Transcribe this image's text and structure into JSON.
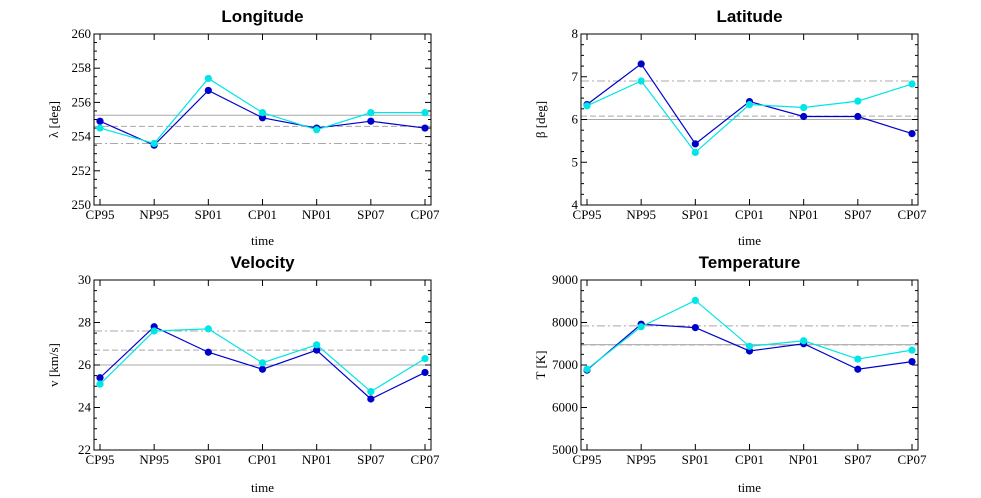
{
  "chart_data": [
    {
      "type": "line",
      "title": "Longitude",
      "xlabel": "time",
      "ylabel": "λ [deg]",
      "categories": [
        "CP95",
        "NP95",
        "SP01",
        "CP01",
        "NP01",
        "SP07",
        "CP07"
      ],
      "ylim": [
        250,
        260
      ],
      "yticks": [
        250,
        252,
        254,
        256,
        258,
        260
      ],
      "series": [
        {
          "color": "#0000cc",
          "values": [
            254.9,
            253.5,
            256.7,
            255.1,
            254.5,
            254.9,
            254.5
          ]
        },
        {
          "color": "#00e5e5",
          "values": [
            254.5,
            253.6,
            257.4,
            255.4,
            254.4,
            255.4,
            255.4
          ]
        }
      ],
      "reference_lines": [
        {
          "style": "solid",
          "value": 255.25
        },
        {
          "style": "dashed",
          "value": 254.6
        },
        {
          "style": "dashdot",
          "value": 253.6
        }
      ]
    },
    {
      "type": "line",
      "title": "Latitude",
      "xlabel": "time",
      "ylabel": "β [deg]",
      "categories": [
        "CP95",
        "NP95",
        "SP01",
        "CP01",
        "NP01",
        "SP07",
        "CP07"
      ],
      "ylim": [
        4,
        8
      ],
      "yticks": [
        4,
        5,
        6,
        7,
        8
      ],
      "series": [
        {
          "color": "#0000cc",
          "values": [
            6.35,
            7.3,
            5.43,
            6.42,
            6.07,
            6.07,
            5.67
          ]
        },
        {
          "color": "#00e5e5",
          "values": [
            6.32,
            6.9,
            5.23,
            6.35,
            6.28,
            6.43,
            6.83
          ]
        }
      ],
      "reference_lines": [
        {
          "style": "solid",
          "value": 6.0
        },
        {
          "style": "dashed",
          "value": 6.08
        },
        {
          "style": "dashdot",
          "value": 6.9
        }
      ]
    },
    {
      "type": "line",
      "title": "Velocity",
      "xlabel": "time",
      "ylabel": "v [km/s]",
      "categories": [
        "CP95",
        "NP95",
        "SP01",
        "CP01",
        "NP01",
        "SP07",
        "CP07"
      ],
      "ylim": [
        22,
        30
      ],
      "yticks": [
        22,
        24,
        26,
        28,
        30
      ],
      "series": [
        {
          "color": "#0000cc",
          "values": [
            25.4,
            27.8,
            26.6,
            25.8,
            26.7,
            24.4,
            25.65
          ]
        },
        {
          "color": "#00e5e5",
          "values": [
            25.1,
            27.6,
            27.7,
            26.1,
            26.95,
            24.75,
            26.3
          ]
        }
      ],
      "reference_lines": [
        {
          "style": "solid",
          "value": 26.0
        },
        {
          "style": "dashed",
          "value": 26.7
        },
        {
          "style": "dashdot",
          "value": 27.6
        }
      ]
    },
    {
      "type": "line",
      "title": "Temperature",
      "xlabel": "time",
      "ylabel": "T [K]",
      "categories": [
        "CP95",
        "NP95",
        "SP01",
        "CP01",
        "NP01",
        "SP07",
        "CP07"
      ],
      "ylim": [
        5000,
        9000
      ],
      "yticks": [
        5000,
        6000,
        7000,
        8000,
        9000
      ],
      "series": [
        {
          "color": "#0000cc",
          "values": [
            6880,
            7960,
            7880,
            7330,
            7500,
            6900,
            7080
          ]
        },
        {
          "color": "#00e5e5",
          "values": [
            6900,
            7900,
            8520,
            7440,
            7570,
            7140,
            7350
          ]
        }
      ],
      "reference_lines": [
        {
          "style": "solid",
          "value": 7480
        },
        {
          "style": "dashed",
          "value": 7470
        },
        {
          "style": "dashdot",
          "value": 7920
        }
      ]
    }
  ]
}
